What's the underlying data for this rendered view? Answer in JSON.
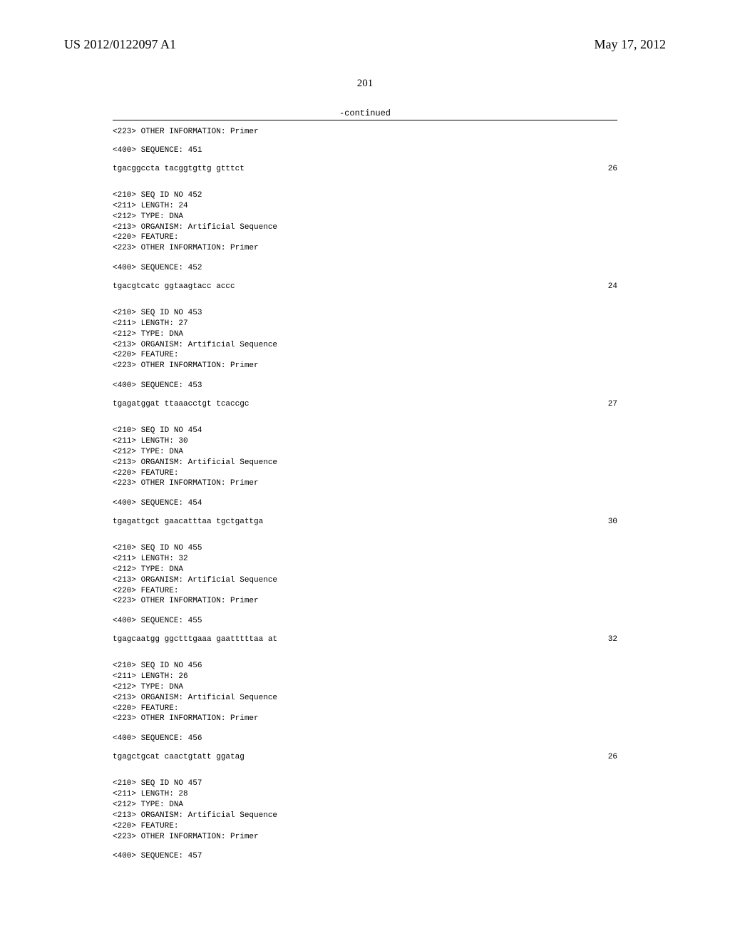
{
  "header": {
    "publication_number": "US 2012/0122097 A1",
    "publication_date": "May 17, 2012"
  },
  "page_number": "201",
  "continued_label": "-continued",
  "first_tail": "<223> OTHER INFORMATION: Primer",
  "entries": [
    {
      "seq_label": "<400> SEQUENCE: 451",
      "sequence": "tgacggccta tacggtgttg gtttct",
      "length": "26",
      "meta": "<210> SEQ ID NO 452\n<211> LENGTH: 24\n<212> TYPE: DNA\n<213> ORGANISM: Artificial Sequence\n<220> FEATURE:\n<223> OTHER INFORMATION: Primer"
    },
    {
      "seq_label": "<400> SEQUENCE: 452",
      "sequence": "tgacgtcatc ggtaagtacc accc",
      "length": "24",
      "meta": "<210> SEQ ID NO 453\n<211> LENGTH: 27\n<212> TYPE: DNA\n<213> ORGANISM: Artificial Sequence\n<220> FEATURE:\n<223> OTHER INFORMATION: Primer"
    },
    {
      "seq_label": "<400> SEQUENCE: 453",
      "sequence": "tgagatggat ttaaacctgt tcaccgc",
      "length": "27",
      "meta": "<210> SEQ ID NO 454\n<211> LENGTH: 30\n<212> TYPE: DNA\n<213> ORGANISM: Artificial Sequence\n<220> FEATURE:\n<223> OTHER INFORMATION: Primer"
    },
    {
      "seq_label": "<400> SEQUENCE: 454",
      "sequence": "tgagattgct gaacatttaa tgctgattga",
      "length": "30",
      "meta": "<210> SEQ ID NO 455\n<211> LENGTH: 32\n<212> TYPE: DNA\n<213> ORGANISM: Artificial Sequence\n<220> FEATURE:\n<223> OTHER INFORMATION: Primer"
    },
    {
      "seq_label": "<400> SEQUENCE: 455",
      "sequence": "tgagcaatgg ggctttgaaa gaatttttaa at",
      "length": "32",
      "meta": "<210> SEQ ID NO 456\n<211> LENGTH: 26\n<212> TYPE: DNA\n<213> ORGANISM: Artificial Sequence\n<220> FEATURE:\n<223> OTHER INFORMATION: Primer"
    },
    {
      "seq_label": "<400> SEQUENCE: 456",
      "sequence": "tgagctgcat caactgtatt ggatag",
      "length": "26",
      "meta": "<210> SEQ ID NO 457\n<211> LENGTH: 28\n<212> TYPE: DNA\n<213> ORGANISM: Artificial Sequence\n<220> FEATURE:\n<223> OTHER INFORMATION: Primer"
    }
  ],
  "final_seq_label": "<400> SEQUENCE: 457"
}
